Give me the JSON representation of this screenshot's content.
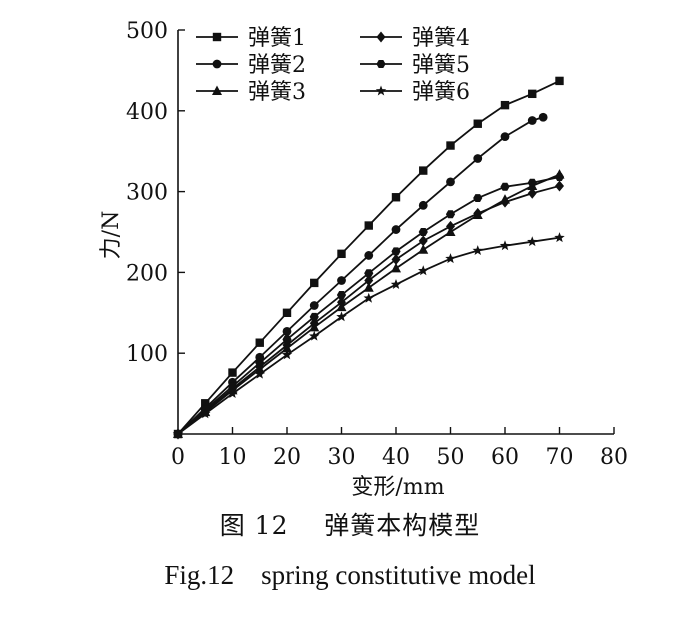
{
  "chart_data": {
    "type": "line",
    "xlabel": "变形/mm",
    "ylabel": "力/N",
    "xlim": [
      0,
      80
    ],
    "ylim": [
      0,
      500
    ],
    "xticks": [
      0,
      10,
      20,
      30,
      40,
      50,
      60,
      70,
      80
    ],
    "yticks": [
      100,
      200,
      300,
      400,
      500
    ],
    "grid": false,
    "legend_position": "top-left",
    "series": [
      {
        "name": "弹簧1",
        "marker": "square",
        "x": [
          0,
          5,
          10,
          15,
          20,
          25,
          30,
          35,
          40,
          45,
          50,
          55,
          60,
          65,
          70
        ],
        "y": [
          0,
          38,
          76,
          113,
          150,
          187,
          223,
          258,
          293,
          326,
          357,
          384,
          407,
          421,
          437
        ]
      },
      {
        "name": "弹簧2",
        "marker": "circle",
        "x": [
          0,
          5,
          10,
          15,
          20,
          25,
          30,
          35,
          40,
          45,
          50,
          55,
          60,
          65,
          67
        ],
        "y": [
          0,
          32,
          64,
          95,
          127,
          159,
          190,
          221,
          253,
          283,
          312,
          341,
          368,
          388,
          392
        ]
      },
      {
        "name": "弹簧3",
        "marker": "triangle",
        "x": [
          0,
          5,
          10,
          15,
          20,
          25,
          30,
          35,
          40,
          45,
          50,
          55,
          60,
          65,
          70
        ],
        "y": [
          0,
          27,
          54,
          80,
          106,
          132,
          157,
          181,
          205,
          228,
          250,
          271,
          290,
          307,
          321
        ]
      },
      {
        "name": "弹簧4",
        "marker": "diamond",
        "x": [
          0,
          5,
          10,
          15,
          20,
          25,
          30,
          35,
          40,
          45,
          50,
          55,
          60,
          65,
          70
        ],
        "y": [
          0,
          28,
          56,
          83,
          110,
          137,
          163,
          190,
          216,
          239,
          257,
          273,
          287,
          298,
          307
        ]
      },
      {
        "name": "弹簧5",
        "marker": "hexagon",
        "x": [
          0,
          5,
          10,
          15,
          20,
          25,
          30,
          35,
          40,
          45,
          50,
          55,
          60,
          65,
          70
        ],
        "y": [
          0,
          30,
          59,
          88,
          117,
          145,
          172,
          199,
          226,
          250,
          272,
          292,
          306,
          311,
          318
        ]
      },
      {
        "name": "弹簧6",
        "marker": "star",
        "x": [
          0,
          5,
          10,
          15,
          20,
          25,
          30,
          35,
          40,
          45,
          50,
          55,
          60,
          65,
          70
        ],
        "y": [
          0,
          25,
          50,
          74,
          98,
          121,
          145,
          168,
          185,
          202,
          217,
          227,
          233,
          238,
          243
        ]
      }
    ]
  },
  "caption": {
    "cn": "图 12    弹簧本构模型",
    "en": "Fig.12    spring constitutive model"
  },
  "colors": {
    "ink": "#111111",
    "background": "#ffffff"
  }
}
